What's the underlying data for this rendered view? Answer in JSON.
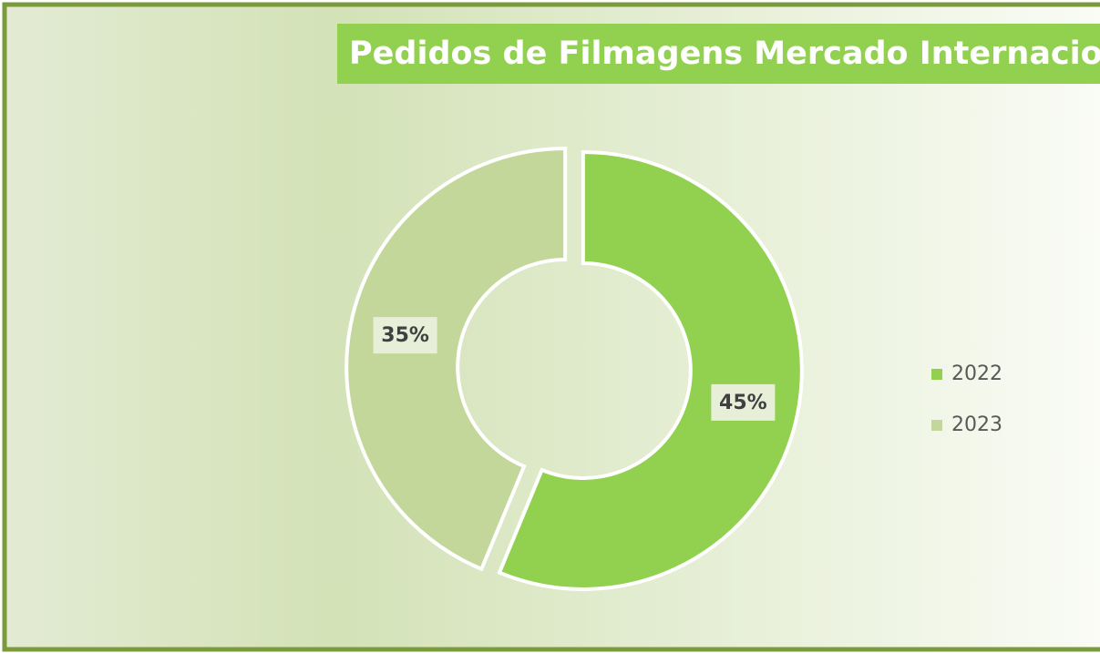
{
  "chart_data": {
    "type": "doughnut",
    "title": "Pedidos de Filmagens Mercado Internacional",
    "categories": [
      "2022",
      "2023"
    ],
    "values": [
      45,
      35
    ],
    "value_labels": [
      "45%",
      "35%"
    ],
    "colors": [
      "#92d050",
      "#c4d79b"
    ],
    "legend": "right"
  }
}
